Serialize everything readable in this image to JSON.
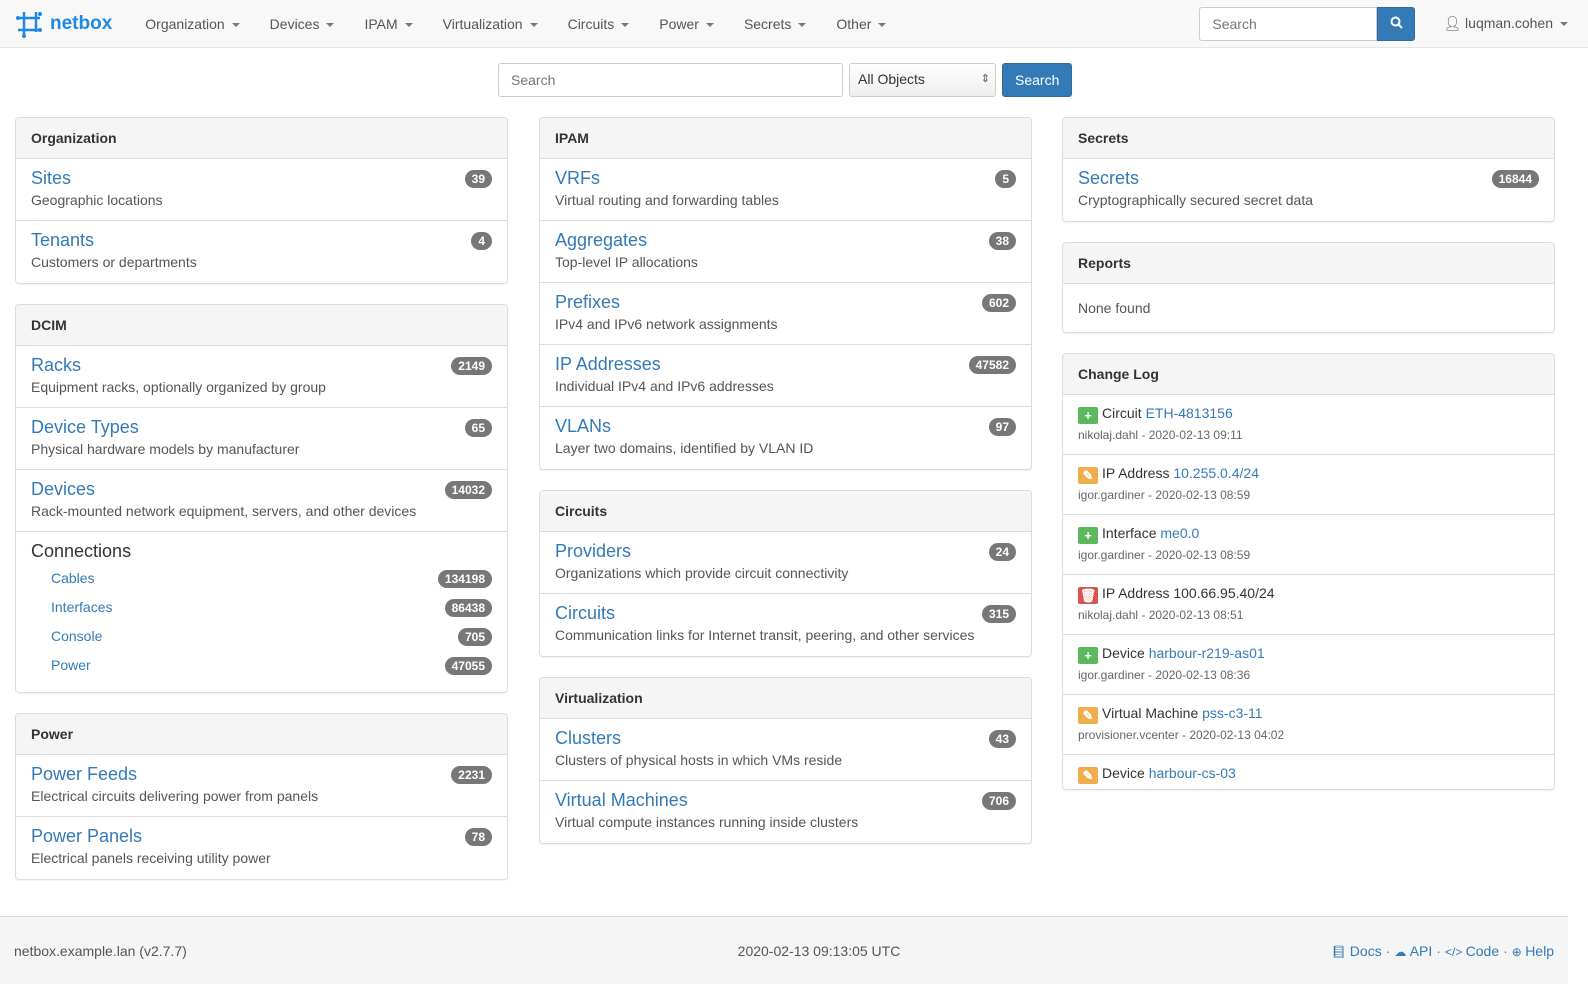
{
  "nav": {
    "brand": "netbox",
    "menus": [
      "Organization",
      "Devices",
      "IPAM",
      "Virtualization",
      "Circuits",
      "Power",
      "Secrets",
      "Other"
    ],
    "search_placeholder": "Search",
    "user": "luqman.cohen"
  },
  "search": {
    "placeholder": "Search",
    "select": "All Objects",
    "button": "Search"
  },
  "columns": [
    [
      {
        "title": "Organization",
        "items": [
          {
            "t": "Sites",
            "d": "Geographic locations",
            "c": "39"
          },
          {
            "t": "Tenants",
            "d": "Customers or departments",
            "c": "4"
          }
        ]
      },
      {
        "title": "DCIM",
        "items": [
          {
            "t": "Racks",
            "d": "Equipment racks, optionally organized by group",
            "c": "2149"
          },
          {
            "t": "Device Types",
            "d": "Physical hardware models by manufacturer",
            "c": "65"
          },
          {
            "t": "Devices",
            "d": "Rack-mounted network equipment, servers, and other devices",
            "c": "14032"
          }
        ],
        "connections": {
          "title": "Connections",
          "items": [
            {
              "t": "Cables",
              "c": "134198"
            },
            {
              "t": "Interfaces",
              "c": "86438"
            },
            {
              "t": "Console",
              "c": "705"
            },
            {
              "t": "Power",
              "c": "47055"
            }
          ]
        }
      },
      {
        "title": "Power",
        "items": [
          {
            "t": "Power Feeds",
            "d": "Electrical circuits delivering power from panels",
            "c": "2231"
          },
          {
            "t": "Power Panels",
            "d": "Electrical panels receiving utility power",
            "c": "78"
          }
        ]
      }
    ],
    [
      {
        "title": "IPAM",
        "items": [
          {
            "t": "VRFs",
            "d": "Virtual routing and forwarding tables",
            "c": "5"
          },
          {
            "t": "Aggregates",
            "d": "Top-level IP allocations",
            "c": "38"
          },
          {
            "t": "Prefixes",
            "d": "IPv4 and IPv6 network assignments",
            "c": "602"
          },
          {
            "t": "IP Addresses",
            "d": "Individual IPv4 and IPv6 addresses",
            "c": "47582"
          },
          {
            "t": "VLANs",
            "d": "Layer two domains, identified by VLAN ID",
            "c": "97"
          }
        ]
      },
      {
        "title": "Circuits",
        "items": [
          {
            "t": "Providers",
            "d": "Organizations which provide circuit connectivity",
            "c": "24"
          },
          {
            "t": "Circuits",
            "d": "Communication links for Internet transit, peering, and other services",
            "c": "315"
          }
        ]
      },
      {
        "title": "Virtualization",
        "items": [
          {
            "t": "Clusters",
            "d": "Clusters of physical hosts in which VMs reside",
            "c": "43"
          },
          {
            "t": "Virtual Machines",
            "d": "Virtual compute instances running inside clusters",
            "c": "706"
          }
        ]
      }
    ],
    [
      {
        "title": "Secrets",
        "items": [
          {
            "t": "Secrets",
            "d": "Cryptographically secured secret data",
            "c": "16844"
          }
        ]
      }
    ]
  ],
  "reports": {
    "title": "Reports",
    "empty": "None found"
  },
  "changelog": {
    "title": "Change Log",
    "entries": [
      {
        "action": "create",
        "type": "Circuit",
        "obj": "ETH-4813156",
        "link": true,
        "meta": "nikolaj.dahl - 2020-02-13 09:11"
      },
      {
        "action": "update",
        "type": "IP Address",
        "obj": "10.255.0.4/24",
        "link": true,
        "meta": "igor.gardiner - 2020-02-13 08:59"
      },
      {
        "action": "create",
        "type": "Interface",
        "obj": "me0.0",
        "link": true,
        "meta": "igor.gardiner - 2020-02-13 08:59"
      },
      {
        "action": "delete",
        "type": "IP Address",
        "obj": "100.66.95.40/24",
        "link": false,
        "meta": "nikolaj.dahl - 2020-02-13 08:51"
      },
      {
        "action": "create",
        "type": "Device",
        "obj": "harbour-r219-as01",
        "link": true,
        "meta": "igor.gardiner - 2020-02-13 08:36"
      },
      {
        "action": "update",
        "type": "Virtual Machine",
        "obj": "pss-c3-11",
        "link": true,
        "meta": "provisioner.vcenter - 2020-02-13 04:02"
      },
      {
        "action": "update",
        "type": "Device",
        "obj": "harbour-cs-03",
        "link": true,
        "meta": ""
      }
    ]
  },
  "colors": {
    "create": "#5cb85c",
    "update": "#f0ad4e",
    "delete": "#d9534f",
    "link": "#337ab7"
  },
  "footer": {
    "host": "netbox.example.lan (v2.7.7)",
    "time": "2020-02-13 09:13:05 UTC",
    "links": [
      {
        "icon": "book-icon",
        "label": "Docs"
      },
      {
        "icon": "cloud-icon",
        "label": "API"
      },
      {
        "icon": "code-icon",
        "label": "Code"
      },
      {
        "icon": "lifebuoy-icon",
        "label": "Help"
      }
    ]
  }
}
